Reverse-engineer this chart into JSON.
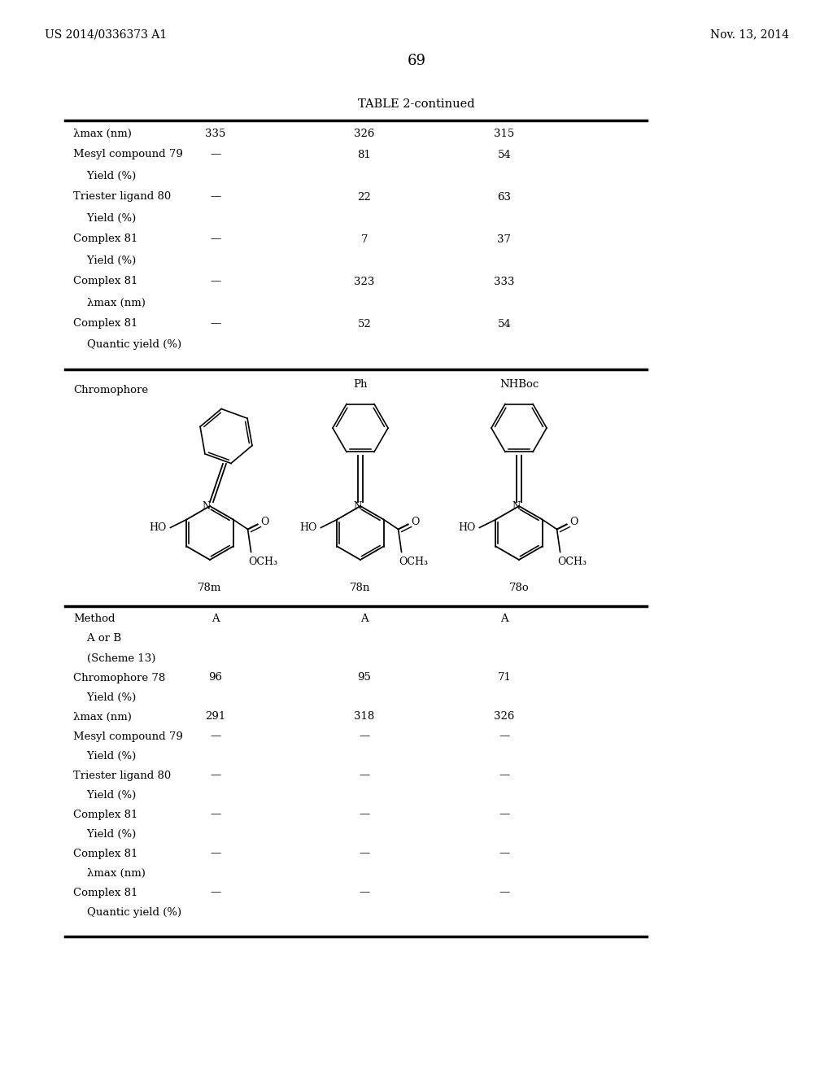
{
  "page_number": "69",
  "left_header": "US 2014/0336373 A1",
  "right_header": "Nov. 13, 2014",
  "table_title": "TABLE 2-continued",
  "bg_color": "#ffffff",
  "table_top_rows": [
    [
      "λmax (nm)",
      "335",
      "326",
      "315"
    ],
    [
      "Mesyl compound 79",
      "—",
      "81",
      "54"
    ],
    [
      "    Yield (%)",
      "",
      "",
      ""
    ],
    [
      "Triester ligand 80",
      "—",
      "22",
      "63"
    ],
    [
      "    Yield (%)",
      "",
      "",
      ""
    ],
    [
      "Complex 81",
      "—",
      "7",
      "37"
    ],
    [
      "    Yield (%)",
      "",
      "",
      ""
    ],
    [
      "Complex 81",
      "—",
      "323",
      "333"
    ],
    [
      "    λmax (nm)",
      "",
      "",
      ""
    ],
    [
      "Complex 81",
      "—",
      "52",
      "54"
    ],
    [
      "    Quantic yield (%)",
      "",
      "",
      ""
    ]
  ],
  "table_bottom_rows": [
    [
      "Method",
      "A",
      "A",
      "A"
    ],
    [
      "    A or B",
      "",
      "",
      ""
    ],
    [
      "    (Scheme 13)",
      "",
      "",
      ""
    ],
    [
      "Chromophore 78",
      "96",
      "95",
      "71"
    ],
    [
      "    Yield (%)",
      "",
      "",
      ""
    ],
    [
      "λmax (nm)",
      "291",
      "318",
      "326"
    ],
    [
      "Mesyl compound 79",
      "—",
      "—",
      "—"
    ],
    [
      "    Yield (%)",
      "",
      "",
      ""
    ],
    [
      "Triester ligand 80",
      "—",
      "—",
      "—"
    ],
    [
      "    Yield (%)",
      "",
      "",
      ""
    ],
    [
      "Complex 81",
      "—",
      "—",
      "—"
    ],
    [
      "    Yield (%)",
      "",
      "",
      ""
    ],
    [
      "Complex 81",
      "—",
      "—",
      "—"
    ],
    [
      "    λmax (nm)",
      "",
      "",
      ""
    ],
    [
      "Complex 81",
      "—",
      "—",
      "—"
    ],
    [
      "    Quantic yield (%)",
      "",
      "",
      ""
    ]
  ]
}
